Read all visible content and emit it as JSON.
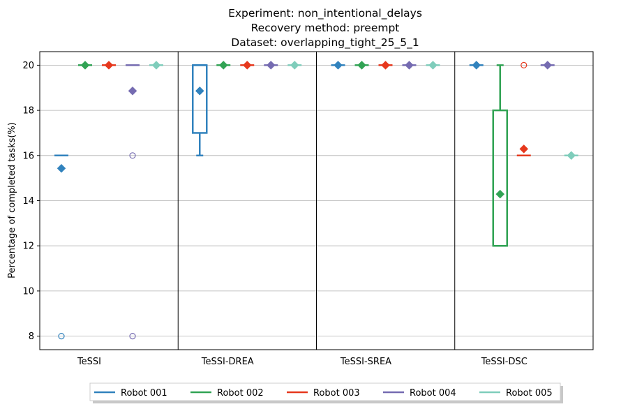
{
  "chart_data": {
    "type": "box",
    "title_lines": [
      "Experiment: non_intentional_delays",
      "Recovery method: preempt",
      "Dataset: overlapping_tight_25_5_1"
    ],
    "ylabel": "Percentage of completed tasks(%)",
    "xlabel": "",
    "ylim": [
      7.4,
      20.6
    ],
    "yticks": [
      8,
      10,
      12,
      14,
      16,
      18,
      20
    ],
    "grid": "y",
    "legend_position": "bottom-center",
    "groups": [
      "TeSSI",
      "TeSSI-DREA",
      "TeSSI-SREA",
      "TeSSI-DSC"
    ],
    "series": [
      {
        "name": "Robot 001",
        "color": "#3182bd",
        "boxes": [
          {
            "q1": 16,
            "median": 16,
            "q3": 16,
            "whisker_low": 16,
            "whisker_high": 16,
            "mean": 15.43,
            "outliers": [
              8
            ]
          },
          {
            "q1": 17,
            "median": 20,
            "q3": 20,
            "whisker_low": 16,
            "whisker_high": 20,
            "mean": 18.86,
            "outliers": []
          },
          {
            "q1": 20,
            "median": 20,
            "q3": 20,
            "whisker_low": 20,
            "whisker_high": 20,
            "mean": 20,
            "outliers": []
          },
          {
            "q1": 20,
            "median": 20,
            "q3": 20,
            "whisker_low": 20,
            "whisker_high": 20,
            "mean": 20,
            "outliers": []
          }
        ]
      },
      {
        "name": "Robot 002",
        "color": "#31a354",
        "boxes": [
          {
            "q1": 20,
            "median": 20,
            "q3": 20,
            "whisker_low": 20,
            "whisker_high": 20,
            "mean": 20,
            "outliers": []
          },
          {
            "q1": 20,
            "median": 20,
            "q3": 20,
            "whisker_low": 20,
            "whisker_high": 20,
            "mean": 20,
            "outliers": []
          },
          {
            "q1": 20,
            "median": 20,
            "q3": 20,
            "whisker_low": 20,
            "whisker_high": 20,
            "mean": 20,
            "outliers": []
          },
          {
            "q1": 12,
            "median": 12,
            "q3": 18,
            "whisker_low": 12,
            "whisker_high": 20,
            "mean": 14.29,
            "outliers": []
          }
        ]
      },
      {
        "name": "Robot 003",
        "color": "#e6381d",
        "boxes": [
          {
            "q1": 20,
            "median": 20,
            "q3": 20,
            "whisker_low": 20,
            "whisker_high": 20,
            "mean": 20,
            "outliers": []
          },
          {
            "q1": 20,
            "median": 20,
            "q3": 20,
            "whisker_low": 20,
            "whisker_high": 20,
            "mean": 20,
            "outliers": []
          },
          {
            "q1": 20,
            "median": 20,
            "q3": 20,
            "whisker_low": 20,
            "whisker_high": 20,
            "mean": 20,
            "outliers": []
          },
          {
            "q1": 16,
            "median": 16,
            "q3": 16,
            "whisker_low": 16,
            "whisker_high": 16,
            "mean": 16.29,
            "outliers": [
              20
            ]
          }
        ]
      },
      {
        "name": "Robot 004",
        "color": "#756bb1",
        "boxes": [
          {
            "q1": 20,
            "median": 20,
            "q3": 20,
            "whisker_low": 20,
            "whisker_high": 20,
            "mean": 18.86,
            "outliers": [
              16,
              8
            ]
          },
          {
            "q1": 20,
            "median": 20,
            "q3": 20,
            "whisker_low": 20,
            "whisker_high": 20,
            "mean": 20,
            "outliers": []
          },
          {
            "q1": 20,
            "median": 20,
            "q3": 20,
            "whisker_low": 20,
            "whisker_high": 20,
            "mean": 20,
            "outliers": []
          },
          {
            "q1": 20,
            "median": 20,
            "q3": 20,
            "whisker_low": 20,
            "whisker_high": 20,
            "mean": 20,
            "outliers": []
          }
        ]
      },
      {
        "name": "Robot 005",
        "color": "#7fcdbb",
        "boxes": [
          {
            "q1": 20,
            "median": 20,
            "q3": 20,
            "whisker_low": 20,
            "whisker_high": 20,
            "mean": 20,
            "outliers": []
          },
          {
            "q1": 20,
            "median": 20,
            "q3": 20,
            "whisker_low": 20,
            "whisker_high": 20,
            "mean": 20,
            "outliers": []
          },
          {
            "q1": 20,
            "median": 20,
            "q3": 20,
            "whisker_low": 20,
            "whisker_high": 20,
            "mean": 20,
            "outliers": []
          },
          {
            "q1": 16,
            "median": 16,
            "q3": 16,
            "whisker_low": 16,
            "whisker_high": 16,
            "mean": 16,
            "outliers": []
          }
        ]
      }
    ]
  }
}
